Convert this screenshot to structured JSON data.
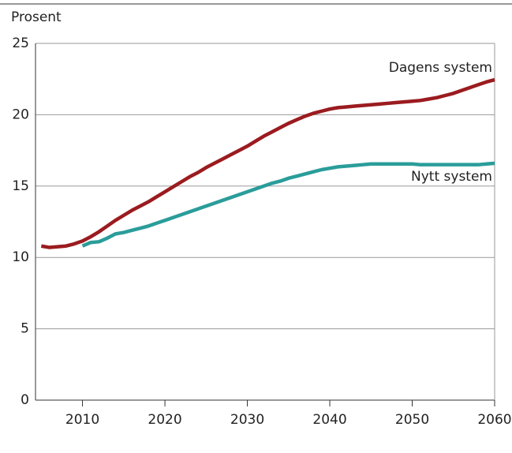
{
  "chart_data": {
    "type": "line",
    "y_axis_label": "Prosent",
    "x": [
      2005,
      2006,
      2007,
      2008,
      2009,
      2010,
      2011,
      2012,
      2013,
      2014,
      2015,
      2016,
      2017,
      2018,
      2019,
      2020,
      2021,
      2022,
      2023,
      2024,
      2025,
      2026,
      2027,
      2028,
      2029,
      2030,
      2031,
      2032,
      2033,
      2034,
      2035,
      2036,
      2037,
      2038,
      2039,
      2040,
      2041,
      2042,
      2043,
      2044,
      2045,
      2046,
      2047,
      2048,
      2049,
      2050,
      2051,
      2052,
      2053,
      2054,
      2055,
      2056,
      2057,
      2058,
      2059,
      2060
    ],
    "series": [
      {
        "name": "Dagens system",
        "color": "#9b1b1f",
        "values": [
          10.8,
          10.7,
          10.75,
          10.8,
          10.95,
          11.15,
          11.45,
          11.8,
          12.2,
          12.6,
          12.95,
          13.3,
          13.6,
          13.9,
          14.25,
          14.6,
          14.95,
          15.3,
          15.65,
          15.95,
          16.3,
          16.6,
          16.9,
          17.2,
          17.5,
          17.8,
          18.15,
          18.5,
          18.8,
          19.1,
          19.4,
          19.65,
          19.9,
          20.1,
          20.25,
          20.4,
          20.5,
          20.55,
          20.6,
          20.65,
          20.7,
          20.75,
          20.8,
          20.85,
          20.9,
          20.95,
          21.0,
          21.1,
          21.2,
          21.35,
          21.5,
          21.7,
          21.9,
          22.1,
          22.3,
          22.45
        ]
      },
      {
        "name": "Nytt system",
        "color": "#2a9d9a",
        "values": [
          null,
          null,
          null,
          null,
          null,
          10.8,
          11.05,
          11.1,
          11.35,
          11.65,
          11.75,
          11.9,
          12.05,
          12.2,
          12.4,
          12.6,
          12.8,
          13.0,
          13.2,
          13.4,
          13.6,
          13.8,
          14.0,
          14.2,
          14.4,
          14.6,
          14.8,
          15.0,
          15.2,
          15.35,
          15.55,
          15.7,
          15.85,
          16.0,
          16.15,
          16.25,
          16.35,
          16.4,
          16.45,
          16.5,
          16.55,
          16.55,
          16.55,
          16.55,
          16.55,
          16.55,
          16.5,
          16.5,
          16.5,
          16.5,
          16.5,
          16.5,
          16.5,
          16.5,
          16.55,
          16.6
        ]
      }
    ],
    "xlim": [
      2004.3,
      2060
    ],
    "xticks": [
      2010,
      2020,
      2030,
      2040,
      2050,
      2060
    ],
    "ylim": [
      0,
      25
    ],
    "yticks": [
      0,
      5,
      10,
      15,
      20,
      25
    ],
    "grid": true
  }
}
